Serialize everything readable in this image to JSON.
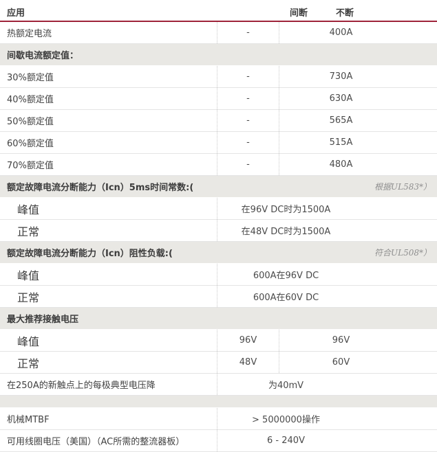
{
  "colors": {
    "accent_line": "#9e2339",
    "section_band_bg": "#e9e8e4",
    "row_border": "#e4e4e4",
    "dotted_divider": "#c9c9c9",
    "heading_text": "#3c3c3c",
    "body_text": "#454545",
    "note_text": "#8f8f8f"
  },
  "table": {
    "header": {
      "application": "应用",
      "intermittent": "间断",
      "continuous": "不断"
    },
    "rows": [
      {
        "type": "data2",
        "label": "热额定电流",
        "v1": "-",
        "v2": "400A"
      },
      {
        "type": "section",
        "label": "间歇电流额定值："
      },
      {
        "type": "data2",
        "label": "30%额定值",
        "v1": "-",
        "v2": "730A"
      },
      {
        "type": "data2",
        "label": "40%额定值",
        "v1": "-",
        "v2": "630A"
      },
      {
        "type": "data2",
        "label": "50%额定值",
        "v1": "-",
        "v2": "565A"
      },
      {
        "type": "data2",
        "label": "60%额定值",
        "v1": "-",
        "v2": "515A"
      },
      {
        "type": "data2",
        "label": "70%额定值",
        "v1": "-",
        "v2": "480A"
      },
      {
        "type": "section",
        "label": "额定故障电流分断能力（Icn）5ms时间常数:(",
        "note": "根据UL583*）"
      },
      {
        "type": "subspan",
        "label": "峰值",
        "value": "在96V DC时为1500A"
      },
      {
        "type": "subspan",
        "label": "正常",
        "value": "在48V DC时为1500A"
      },
      {
        "type": "section",
        "label": "额定故障电流分断能力（Icn）阻性负载:(",
        "note": "符合UL508*）"
      },
      {
        "type": "subspan",
        "label": "峰值",
        "value": "600A在96V DC"
      },
      {
        "type": "subspan",
        "label": "正常",
        "value": "600A在60V DC"
      },
      {
        "type": "section",
        "label": "最大推荐接触电压"
      },
      {
        "type": "sub2",
        "label": "峰值",
        "v1": "96V",
        "v2": "96V"
      },
      {
        "type": "sub2",
        "label": "正常",
        "v1": "48V",
        "v2": "60V"
      },
      {
        "type": "dataspan",
        "label": "在250A的新触点上的每极典型电压降",
        "value": "为40mV"
      },
      {
        "type": "section_empty",
        "label": ""
      },
      {
        "type": "dataspan",
        "label": "机械MTBF",
        "value": "> 5000000操作"
      },
      {
        "type": "dataspan",
        "label": "可用线圈电压（美国）（AC所需的整流器板）",
        "value": "6 - 240V"
      }
    ]
  }
}
